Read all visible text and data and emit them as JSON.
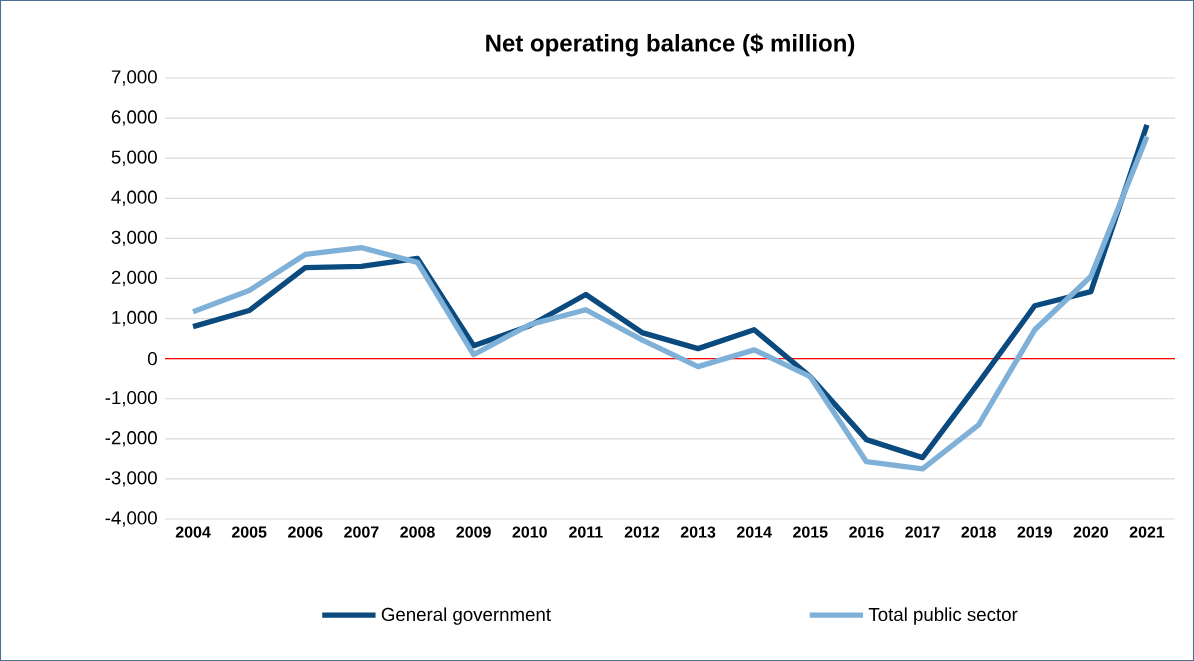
{
  "chart_data": {
    "type": "line",
    "title": "Net operating balance ($ million)",
    "categories": [
      "2004",
      "2005",
      "2006",
      "2007",
      "2008",
      "2009",
      "2010",
      "2011",
      "2012",
      "2013",
      "2014",
      "2015",
      "2016",
      "2017",
      "2018",
      "2019",
      "2020",
      "2021"
    ],
    "series": [
      {
        "name": "General government",
        "color": "#0b4a7e",
        "values": [
          800,
          1200,
          2270,
          2300,
          2500,
          320,
          820,
          1600,
          650,
          250,
          720,
          -450,
          -2020,
          -2470,
          -600,
          1320,
          1670,
          5830
        ]
      },
      {
        "name": "Total public sector",
        "color": "#7fb0d8",
        "values": [
          1170,
          1700,
          2600,
          2770,
          2400,
          100,
          850,
          1220,
          470,
          -200,
          220,
          -450,
          -2570,
          -2750,
          -1650,
          720,
          2050,
          5540
        ]
      }
    ],
    "ylim": [
      -4000,
      7000
    ],
    "yticks": [
      {
        "value": -4000,
        "label": "-4,000"
      },
      {
        "value": -3000,
        "label": "-3,000"
      },
      {
        "value": -2000,
        "label": "-2,000"
      },
      {
        "value": -1000,
        "label": "-1,000"
      },
      0,
      {
        "value": 1000,
        "label": "1,000"
      },
      {
        "value": 2000,
        "label": "2,000"
      },
      {
        "value": 3000,
        "label": "3,000"
      },
      {
        "value": 4000,
        "label": "4,000"
      },
      {
        "value": 5000,
        "label": "5,000"
      },
      {
        "value": 6000,
        "label": "6,000"
      },
      {
        "value": 7000,
        "label": "7,000"
      }
    ],
    "ref_lines": [
      {
        "axis": "y",
        "value": 0,
        "color": "#ff0000"
      }
    ],
    "grid": "y",
    "legend": "bottom",
    "marker": "none",
    "line_style": "solid"
  }
}
